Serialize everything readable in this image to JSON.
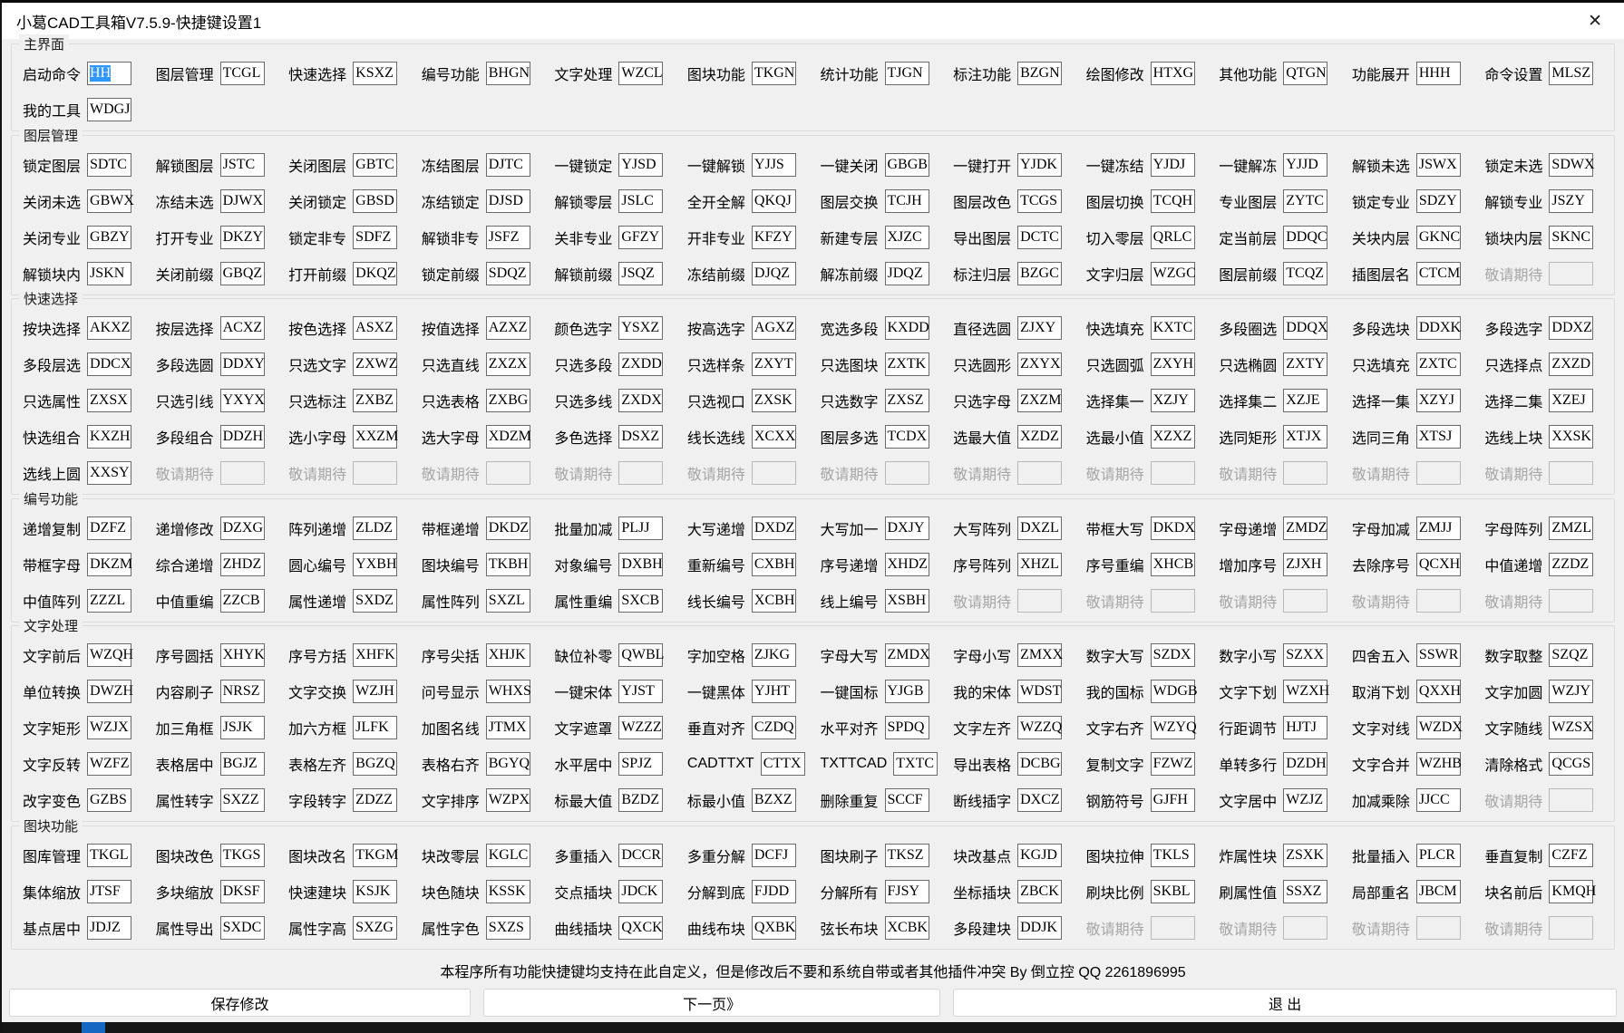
{
  "window": {
    "title": "小葛CAD工具箱V7.5.9-快捷键设置1",
    "close_icon": "✕"
  },
  "colors": {
    "selection": "#3297fd",
    "disabled_text": "#a6a6a6",
    "strip_accent": "#1667c0"
  },
  "sections": [
    {
      "title": "主界面",
      "name": "group-main-ui",
      "rows": [
        [
          [
            "启动命令",
            "HH",
            "sel"
          ],
          [
            "图层管理",
            "TCGL"
          ],
          [
            "快速选择",
            "KSXZ"
          ],
          [
            "编号功能",
            "BHGN"
          ],
          [
            "文字处理",
            "WZCL"
          ],
          [
            "图块功能",
            "TKGN"
          ],
          [
            "统计功能",
            "TJGN"
          ],
          [
            "标注功能",
            "BZGN"
          ],
          [
            "绘图修改",
            "HTXG"
          ],
          [
            "其他功能",
            "QTGN"
          ],
          [
            "功能展开",
            "HHH"
          ],
          [
            "命令设置",
            "MLSZ"
          ]
        ],
        [
          [
            "我的工具",
            "WDGJ"
          ],
          null,
          null,
          null,
          null,
          null,
          null,
          null,
          null,
          null,
          null,
          null
        ]
      ]
    },
    {
      "title": "图层管理",
      "name": "group-layer",
      "rows": [
        [
          [
            "锁定图层",
            "SDTC"
          ],
          [
            "解锁图层",
            "JSTC"
          ],
          [
            "关闭图层",
            "GBTC"
          ],
          [
            "冻结图层",
            "DJTC"
          ],
          [
            "一键锁定",
            "YJSD"
          ],
          [
            "一键解锁",
            "YJJS"
          ],
          [
            "一键关闭",
            "GBGB"
          ],
          [
            "一键打开",
            "YJDK"
          ],
          [
            "一键冻结",
            "YJDJ"
          ],
          [
            "一键解冻",
            "YJJD"
          ],
          [
            "解锁未选",
            "JSWX"
          ],
          [
            "锁定未选",
            "SDWX"
          ]
        ],
        [
          [
            "关闭未选",
            "GBWX"
          ],
          [
            "冻结未选",
            "DJWX"
          ],
          [
            "关闭锁定",
            "GBSD"
          ],
          [
            "冻结锁定",
            "DJSD"
          ],
          [
            "解锁零层",
            "JSLC"
          ],
          [
            "全开全解",
            "QKQJ"
          ],
          [
            "图层交换",
            "TCJH"
          ],
          [
            "图层改色",
            "TCGS"
          ],
          [
            "图层切换",
            "TCQH"
          ],
          [
            "专业图层",
            "ZYTC"
          ],
          [
            "锁定专业",
            "SDZY"
          ],
          [
            "解锁专业",
            "JSZY"
          ]
        ],
        [
          [
            "关闭专业",
            "GBZY"
          ],
          [
            "打开专业",
            "DKZY"
          ],
          [
            "锁定非专",
            "SDFZ"
          ],
          [
            "解锁非专",
            "JSFZ"
          ],
          [
            "关非专业",
            "GFZY"
          ],
          [
            "开非专业",
            "KFZY"
          ],
          [
            "新建专层",
            "XJZC"
          ],
          [
            "导出图层",
            "DCTC"
          ],
          [
            "切入零层",
            "QRLC"
          ],
          [
            "定当前层",
            "DDQC"
          ],
          [
            "关块内层",
            "GKNC"
          ],
          [
            "锁块内层",
            "SKNC"
          ]
        ],
        [
          [
            "解锁块内",
            "JSKN"
          ],
          [
            "关闭前缀",
            "GBQZ"
          ],
          [
            "打开前缀",
            "DKQZ"
          ],
          [
            "锁定前缀",
            "SDQZ"
          ],
          [
            "解锁前缀",
            "JSQZ"
          ],
          [
            "冻结前缀",
            "DJQZ"
          ],
          [
            "解冻前缀",
            "JDQZ"
          ],
          [
            "标注归层",
            "BZGC"
          ],
          [
            "文字归层",
            "WZGC"
          ],
          [
            "图层前缀",
            "TCQZ"
          ],
          [
            "插图层名",
            "CTCM"
          ],
          [
            "敬请期待",
            "",
            "dis"
          ]
        ]
      ]
    },
    {
      "title": "快速选择",
      "name": "group-quick-select",
      "rows": [
        [
          [
            "按块选择",
            "AKXZ"
          ],
          [
            "按层选择",
            "ACXZ"
          ],
          [
            "按色选择",
            "ASXZ"
          ],
          [
            "按值选择",
            "AZXZ"
          ],
          [
            "颜色选字",
            "YSXZ"
          ],
          [
            "按高选字",
            "AGXZ"
          ],
          [
            "宽选多段",
            "KXDD"
          ],
          [
            "直径选圆",
            "ZJXY"
          ],
          [
            "快选填充",
            "KXTC"
          ],
          [
            "多段圈选",
            "DDQX"
          ],
          [
            "多段选块",
            "DDXK"
          ],
          [
            "多段选字",
            "DDXZ"
          ]
        ],
        [
          [
            "多段层选",
            "DDCX"
          ],
          [
            "多段选圆",
            "DDXY"
          ],
          [
            "只选文字",
            "ZXWZ"
          ],
          [
            "只选直线",
            "ZXZX"
          ],
          [
            "只选多段",
            "ZXDD"
          ],
          [
            "只选样条",
            "ZXYT"
          ],
          [
            "只选图块",
            "ZXTK"
          ],
          [
            "只选圆形",
            "ZXYX"
          ],
          [
            "只选圆弧",
            "ZXYH"
          ],
          [
            "只选椭圆",
            "ZXTY"
          ],
          [
            "只选填充",
            "ZXTC"
          ],
          [
            "只选择点",
            "ZXZD"
          ]
        ],
        [
          [
            "只选属性",
            "ZXSX"
          ],
          [
            "只选引线",
            "YXYX"
          ],
          [
            "只选标注",
            "ZXBZ"
          ],
          [
            "只选表格",
            "ZXBG"
          ],
          [
            "只选多线",
            "ZXDX"
          ],
          [
            "只选视口",
            "ZXSK"
          ],
          [
            "只选数字",
            "ZXSZ"
          ],
          [
            "只选字母",
            "ZXZM"
          ],
          [
            "选择集一",
            "XZJY"
          ],
          [
            "选择集二",
            "XZJE"
          ],
          [
            "选择一集",
            "XZYJ"
          ],
          [
            "选择二集",
            "XZEJ"
          ]
        ],
        [
          [
            "快选组合",
            "KXZH"
          ],
          [
            "多段组合",
            "DDZH"
          ],
          [
            "选小字母",
            "XXZM"
          ],
          [
            "选大字母",
            "XDZM"
          ],
          [
            "多色选择",
            "DSXZ"
          ],
          [
            "线长选线",
            "XCXX"
          ],
          [
            "图层多选",
            "TCDX"
          ],
          [
            "选最大值",
            "XZDZ"
          ],
          [
            "选最小值",
            "XZXZ"
          ],
          [
            "选同矩形",
            "XTJX"
          ],
          [
            "选同三角",
            "XTSJ"
          ],
          [
            "选线上块",
            "XXSK"
          ]
        ],
        [
          [
            "选线上圆",
            "XXSY"
          ],
          [
            "敬请期待",
            "",
            "dis"
          ],
          [
            "敬请期待",
            "",
            "dis"
          ],
          [
            "敬请期待",
            "",
            "dis"
          ],
          [
            "敬请期待",
            "",
            "dis"
          ],
          [
            "敬请期待",
            "",
            "dis"
          ],
          [
            "敬请期待",
            "",
            "dis"
          ],
          [
            "敬请期待",
            "",
            "dis"
          ],
          [
            "敬请期待",
            "",
            "dis"
          ],
          [
            "敬请期待",
            "",
            "dis"
          ],
          [
            "敬请期待",
            "",
            "dis"
          ],
          [
            "敬请期待",
            "",
            "dis"
          ]
        ]
      ]
    },
    {
      "title": "编号功能",
      "name": "group-numbering",
      "rows": [
        [
          [
            "递增复制",
            "DZFZ"
          ],
          [
            "递增修改",
            "DZXG"
          ],
          [
            "阵列递增",
            "ZLDZ"
          ],
          [
            "带框递增",
            "DKDZ"
          ],
          [
            "批量加减",
            "PLJJ"
          ],
          [
            "大写递增",
            "DXDZ"
          ],
          [
            "大写加一",
            "DXJY"
          ],
          [
            "大写阵列",
            "DXZL"
          ],
          [
            "带框大写",
            "DKDX"
          ],
          [
            "字母递增",
            "ZMDZ"
          ],
          [
            "字母加减",
            "ZMJJ"
          ],
          [
            "字母阵列",
            "ZMZL"
          ]
        ],
        [
          [
            "带框字母",
            "DKZM"
          ],
          [
            "综合递增",
            "ZHDZ"
          ],
          [
            "圆心编号",
            "YXBH"
          ],
          [
            "图块编号",
            "TKBH"
          ],
          [
            "对象编号",
            "DXBH"
          ],
          [
            "重新编号",
            "CXBH"
          ],
          [
            "序号递增",
            "XHDZ"
          ],
          [
            "序号阵列",
            "XHZL"
          ],
          [
            "序号重编",
            "XHCB"
          ],
          [
            "增加序号",
            "ZJXH"
          ],
          [
            "去除序号",
            "QCXH"
          ],
          [
            "中值递增",
            "ZZDZ"
          ]
        ],
        [
          [
            "中值阵列",
            "ZZZL"
          ],
          [
            "中值重编",
            "ZZCB"
          ],
          [
            "属性递增",
            "SXDZ"
          ],
          [
            "属性阵列",
            "SXZL"
          ],
          [
            "属性重编",
            "SXCB"
          ],
          [
            "线长编号",
            "XCBH"
          ],
          [
            "线上编号",
            "XSBH"
          ],
          [
            "敬请期待",
            "",
            "dis"
          ],
          [
            "敬请期待",
            "",
            "dis"
          ],
          [
            "敬请期待",
            "",
            "dis"
          ],
          [
            "敬请期待",
            "",
            "dis"
          ],
          [
            "敬请期待",
            "",
            "dis"
          ]
        ]
      ]
    },
    {
      "title": "文字处理",
      "name": "group-text",
      "rows": [
        [
          [
            "文字前后",
            "WZQH"
          ],
          [
            "序号圆括",
            "XHYK"
          ],
          [
            "序号方括",
            "XHFK"
          ],
          [
            "序号尖括",
            "XHJK"
          ],
          [
            "缺位补零",
            "QWBL"
          ],
          [
            "字加空格",
            "ZJKG"
          ],
          [
            "字母大写",
            "ZMDX"
          ],
          [
            "字母小写",
            "ZMXX"
          ],
          [
            "数字大写",
            "SZDX"
          ],
          [
            "数字小写",
            "SZXX"
          ],
          [
            "四舍五入",
            "SSWR"
          ],
          [
            "数字取整",
            "SZQZ"
          ]
        ],
        [
          [
            "单位转换",
            "DWZH"
          ],
          [
            "内容刷子",
            "NRSZ"
          ],
          [
            "文字交换",
            "WZJH"
          ],
          [
            "问号显示",
            "WHXS"
          ],
          [
            "一键宋体",
            "YJST"
          ],
          [
            "一键黑体",
            "YJHT"
          ],
          [
            "一键国标",
            "YJGB"
          ],
          [
            "我的宋体",
            "WDST"
          ],
          [
            "我的国标",
            "WDGB"
          ],
          [
            "文字下划",
            "WZXH"
          ],
          [
            "取消下划",
            "QXXH"
          ],
          [
            "文字加圆",
            "WZJY"
          ]
        ],
        [
          [
            "文字矩形",
            "WZJX"
          ],
          [
            "加三角框",
            "JSJK"
          ],
          [
            "加六方框",
            "JLFK"
          ],
          [
            "加图名线",
            "JTMX"
          ],
          [
            "文字遮罩",
            "WZZZ"
          ],
          [
            "垂直对齐",
            "CZDQ"
          ],
          [
            "水平对齐",
            "SPDQ"
          ],
          [
            "文字左齐",
            "WZZQ"
          ],
          [
            "文字右齐",
            "WZYQ"
          ],
          [
            "行距调节",
            "HJTJ"
          ],
          [
            "文字对线",
            "WZDX"
          ],
          [
            "文字随线",
            "WZSX"
          ]
        ],
        [
          [
            "文字反转",
            "WZFZ"
          ],
          [
            "表格居中",
            "BGJZ"
          ],
          [
            "表格左齐",
            "BGZQ"
          ],
          [
            "表格右齐",
            "BGYQ"
          ],
          [
            "水平居中",
            "SPJZ"
          ],
          [
            "CADTTXT",
            "CTTX"
          ],
          [
            "TXTTCAD",
            "TXTC"
          ],
          [
            "导出表格",
            "DCBG"
          ],
          [
            "复制文字",
            "FZWZ"
          ],
          [
            "单转多行",
            "DZDH"
          ],
          [
            "文字合并",
            "WZHB"
          ],
          [
            "清除格式",
            "QCGS"
          ]
        ],
        [
          [
            "改字变色",
            "GZBS"
          ],
          [
            "属性转字",
            "SXZZ"
          ],
          [
            "字段转字",
            "ZDZZ"
          ],
          [
            "文字排序",
            "WZPX"
          ],
          [
            "标最大值",
            "BZDZ"
          ],
          [
            "标最小值",
            "BZXZ"
          ],
          [
            "删除重复",
            "SCCF"
          ],
          [
            "断线插字",
            "DXCZ"
          ],
          [
            "钢筋符号",
            "GJFH"
          ],
          [
            "文字居中",
            "WZJZ"
          ],
          [
            "加减乘除",
            "JJCC"
          ],
          [
            "敬请期待",
            "",
            "dis"
          ]
        ]
      ]
    },
    {
      "title": "图块功能",
      "name": "group-block",
      "rows": [
        [
          [
            "图库管理",
            "TKGL"
          ],
          [
            "图块改色",
            "TKGS"
          ],
          [
            "图块改名",
            "TKGM"
          ],
          [
            "块改零层",
            "KGLC"
          ],
          [
            "多重插入",
            "DCCR"
          ],
          [
            "多重分解",
            "DCFJ"
          ],
          [
            "图块刷子",
            "TKSZ"
          ],
          [
            "块改基点",
            "KGJD"
          ],
          [
            "图块拉伸",
            "TKLS"
          ],
          [
            "炸属性块",
            "ZSXK"
          ],
          [
            "批量插入",
            "PLCR"
          ],
          [
            "垂直复制",
            "CZFZ"
          ]
        ],
        [
          [
            "集体缩放",
            "JTSF"
          ],
          [
            "多块缩放",
            "DKSF"
          ],
          [
            "快速建块",
            "KSJK"
          ],
          [
            "块色随块",
            "KSSK"
          ],
          [
            "交点插块",
            "JDCK"
          ],
          [
            "分解到底",
            "FJDD"
          ],
          [
            "分解所有",
            "FJSY"
          ],
          [
            "坐标插块",
            "ZBCK"
          ],
          [
            "刷块比例",
            "SKBL"
          ],
          [
            "刷属性值",
            "SSXZ"
          ],
          [
            "局部重名",
            "JBCM"
          ],
          [
            "块名前后",
            "KMQH"
          ]
        ],
        [
          [
            "基点居中",
            "JDJZ"
          ],
          [
            "属性导出",
            "SXDC"
          ],
          [
            "属性字高",
            "SXZG"
          ],
          [
            "属性字色",
            "SXZS"
          ],
          [
            "曲线插块",
            "QXCK"
          ],
          [
            "曲线布块",
            "QXBK"
          ],
          [
            "弦长布块",
            "XCBK"
          ],
          [
            "多段建块",
            "DDJK"
          ],
          [
            "敬请期待",
            "",
            "dis"
          ],
          [
            "敬请期待",
            "",
            "dis"
          ],
          [
            "敬请期待",
            "",
            "dis"
          ],
          [
            "敬请期待",
            "",
            "dis"
          ]
        ]
      ]
    }
  ],
  "footer": {
    "note": "本程序所有功能快捷键均支持在此自定义，但是修改后不要和系统自带或者其他插件冲突  By 倒立控 QQ 2261896995",
    "save_label": "保存修改",
    "next_label": "下一页》",
    "exit_label": "退  出"
  }
}
